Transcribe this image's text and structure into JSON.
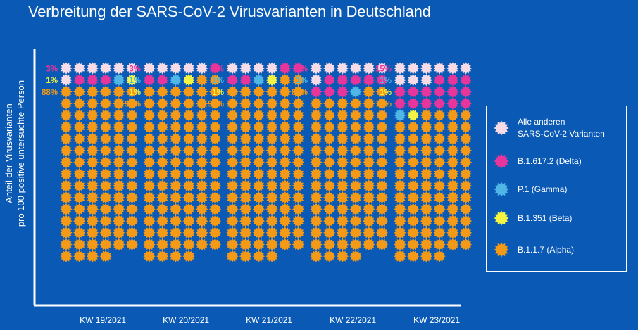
{
  "chart_data": {
    "type": "waffle",
    "title": "Verbreitung der SARS-CoV-2 Virusvarianten in Deutschland",
    "ylabel_lines": [
      "Anteil der Virusvarianten",
      "pro 100 positive untersuchte Person"
    ],
    "categories": [
      "KW 19/2021",
      "KW 20/2021",
      "KW 21/2021",
      "KW 22/2021",
      "KW 23/2021"
    ],
    "units_per_column": 100,
    "series": [
      {
        "name": "Alle anderen SARS-CoV-2 Varianten",
        "color": "#f7dbe6",
        "values": [
          7,
          5,
          4,
          7,
          9
        ]
      },
      {
        "name": "B.1.617.2 (Delta)",
        "color": "#e8359b",
        "values": [
          3,
          3,
          4,
          8,
          15
        ]
      },
      {
        "name": "P.1 (Gamma)",
        "color": "#4fb6e6",
        "values": [
          1,
          1,
          1,
          1,
          1
        ]
      },
      {
        "name": "B.1.351 (Beta)",
        "color": "#f3f542",
        "values": [
          1,
          1,
          1,
          0,
          1
        ]
      },
      {
        "name": "B.1.1.7 (Alpha)",
        "color": "#f59a17",
        "values": [
          88,
          90,
          90,
          84,
          74
        ]
      }
    ],
    "data_labels": [
      [
        {
          "text": "3%",
          "color": "#e8359b"
        },
        {
          "text": "1%",
          "color": "#f3f542"
        },
        {
          "text": "88%",
          "color": "#f59a17"
        }
      ],
      [
        {
          "text": "3%",
          "color": "#e8359b"
        },
        {
          "text": "1%",
          "color": "#4fb6e6"
        },
        {
          "text": "1%",
          "color": "#f3f542"
        },
        {
          "text": "90%",
          "color": "#f59a17"
        }
      ],
      [
        {
          "text": "4%",
          "color": "#e8359b"
        },
        {
          "text": "1%",
          "color": "#4fb6e6"
        },
        {
          "text": "1%",
          "color": "#f3f542"
        },
        {
          "text": "90%",
          "color": "#f59a17"
        }
      ],
      [
        {
          "text": "8%",
          "color": "#e8359b"
        },
        {
          "text": "1%",
          "color": "#4fb6e6"
        },
        {
          "text": "84%",
          "color": "#f59a17"
        }
      ],
      [
        {
          "text": "15%",
          "color": "#e8359b"
        },
        {
          "text": "1%",
          "color": "#4fb6e6"
        },
        {
          "text": "1%",
          "color": "#f3f542"
        },
        {
          "text": "74%",
          "color": "#f59a17"
        }
      ]
    ]
  },
  "legend": {
    "items": [
      {
        "lines": [
          "Alle anderen",
          "SARS-CoV-2 Varianten"
        ],
        "color": "#f7dbe6",
        "icon": "virus-icon"
      },
      {
        "lines": [
          "B.1.617.2 (Delta)"
        ],
        "color": "#e8359b",
        "icon": "virus-icon"
      },
      {
        "lines": [
          "P.1 (Gamma)"
        ],
        "color": "#4fb6e6",
        "icon": "virus-icon"
      },
      {
        "lines": [
          "B.1.351 (Beta)"
        ],
        "color": "#f3f542",
        "icon": "virus-icon"
      },
      {
        "lines": [
          "B.1.1.7 (Alpha)"
        ],
        "color": "#f59a17",
        "icon": "virus-icon"
      }
    ]
  },
  "colors": {
    "background": "#0a5ab5",
    "axis": "#ffffff",
    "text": "#ffffff"
  }
}
